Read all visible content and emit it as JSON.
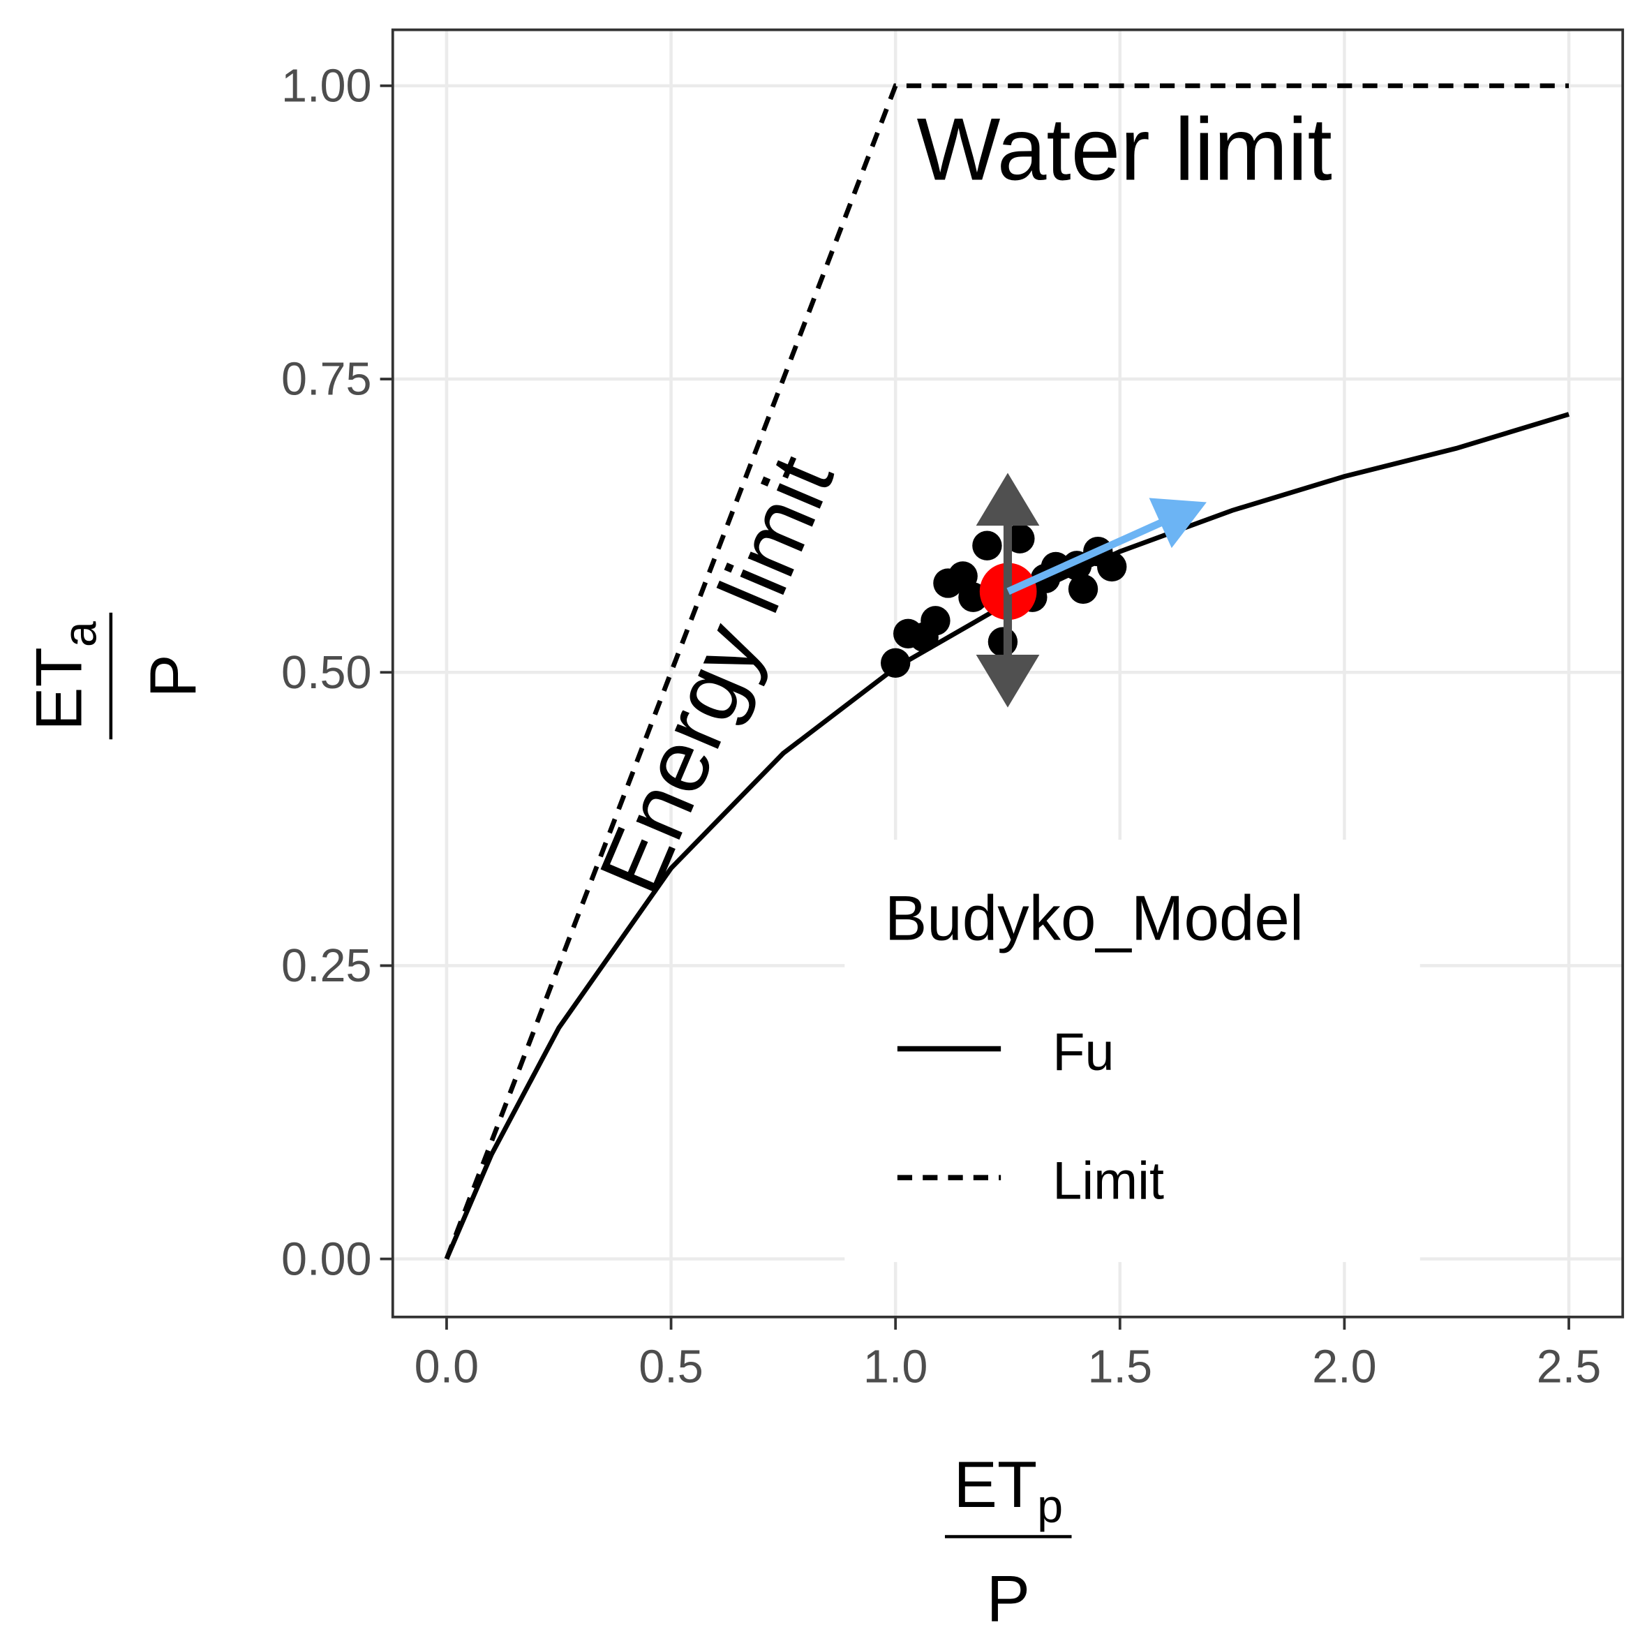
{
  "chart_data": {
    "type": "line",
    "x_label": {
      "numerator": "ET",
      "numerator_subscript": "p",
      "denominator": "P"
    },
    "y_label": {
      "numerator": "ET",
      "numerator_subscript": "a",
      "denominator": "P"
    },
    "xlim": [
      -0.12,
      2.62
    ],
    "ylim": [
      -0.0495,
      1.0477
    ],
    "xticks": [
      {
        "value": 0,
        "label": "0.0"
      },
      {
        "value": 0.5,
        "label": "0.5"
      },
      {
        "value": 1,
        "label": "1.0"
      },
      {
        "value": 1.5,
        "label": "1.5"
      },
      {
        "value": 2,
        "label": "2.0"
      },
      {
        "value": 2.5,
        "label": "2.5"
      }
    ],
    "yticks": [
      {
        "value": 0,
        "label": "0.00"
      },
      {
        "value": 0.25,
        "label": "0.25"
      },
      {
        "value": 0.5,
        "label": "0.50"
      },
      {
        "value": 0.75,
        "label": "0.75"
      },
      {
        "value": 1,
        "label": "1.00"
      }
    ],
    "grid": true,
    "legend": {
      "title": "Budyko_Model",
      "position": "bottom-right"
    },
    "series": [
      {
        "name": "Fu",
        "color": "#000000",
        "dash": "solid",
        "x": [
          0,
          0.1,
          0.25,
          0.5,
          0.75,
          1,
          1.25,
          1.5,
          1.75,
          2,
          2.25,
          2.5
        ],
        "values": [
          0,
          0.089,
          0.197,
          0.333,
          0.431,
          0.504,
          0.559,
          0.603,
          0.638,
          0.667,
          0.691,
          0.72
        ]
      },
      {
        "name": "Limit",
        "color": "#000000",
        "dash": "dashed",
        "x": [
          0,
          1,
          2.5
        ],
        "values": [
          0,
          1,
          1
        ]
      }
    ],
    "points": {
      "color": "#000000",
      "x": [
        1.0,
        1.028,
        1.063,
        1.089,
        1.117,
        1.15,
        1.173,
        1.204,
        1.277,
        1.239,
        1.305,
        1.334,
        1.357,
        1.404,
        1.418,
        1.451,
        1.482
      ],
      "values": [
        0.508,
        0.533,
        0.53,
        0.544,
        0.576,
        0.582,
        0.564,
        0.608,
        0.614,
        0.526,
        0.564,
        0.58,
        0.59,
        0.591,
        0.571,
        0.603,
        0.59
      ]
    },
    "highlight": {
      "color": "#ff0000",
      "x": 1.251,
      "y": 0.569
    },
    "arrows": [
      {
        "color": "#505050",
        "x": [
          1.25,
          1.25
        ],
        "y": [
          0.47,
          0.67
        ],
        "heads": "both"
      },
      {
        "color": "#6cb4f4",
        "x": [
          1.251,
          1.693
        ],
        "y": [
          0.569,
          0.645
        ],
        "heads": "end"
      }
    ],
    "annotations": [
      {
        "text": "Water limit"
      },
      {
        "text": "Energy limit"
      }
    ]
  }
}
